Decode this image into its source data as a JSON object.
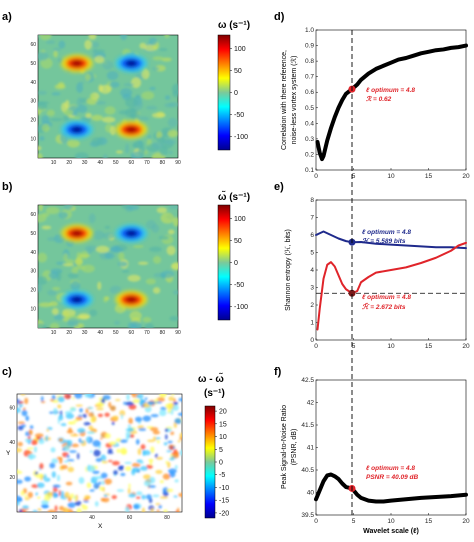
{
  "colors": {
    "red": "#e0242a",
    "blue": "#1f2a8c",
    "black": "#000000",
    "field": "#74c69c"
  },
  "panels": {
    "a": {
      "label": "a)",
      "cbar_title": "ω (s⁻¹)",
      "cbar_ticks": [
        "100",
        "50",
        "0",
        "-50",
        "-100"
      ],
      "xticks": [
        "10",
        "20",
        "30",
        "40",
        "50",
        "60",
        "70",
        "80",
        "90"
      ],
      "yticks": [
        "60",
        "50",
        "40",
        "30",
        "20",
        "10"
      ]
    },
    "b": {
      "label": "b)",
      "cbar_title": "ω̃ (s⁻¹)",
      "cbar_ticks": [
        "100",
        "50",
        "0",
        "-50",
        "-100"
      ],
      "xticks": [
        "10",
        "20",
        "30",
        "40",
        "50",
        "60",
        "70",
        "80",
        "90"
      ],
      "yticks": [
        "60",
        "50",
        "40",
        "30",
        "20",
        "10"
      ]
    },
    "c": {
      "label": "c)",
      "cbar_title": "ω - ω̃",
      "cbar_unit": "(s⁻¹)",
      "cbar_ticks": [
        "20",
        "15",
        "10",
        "5",
        "0",
        "-5",
        "-10",
        "-15",
        "-20"
      ],
      "xticks": [
        "20",
        "40",
        "60",
        "80"
      ],
      "yticks": [
        "60",
        "40",
        "20"
      ],
      "xlabel": "X",
      "ylabel": "Y"
    },
    "d": {
      "label": "d)",
      "ylabel1": "Correlation with there reference,",
      "ylabel2": "noise-less vortex system (ℛ)",
      "ann1": "ℓ optimum = 4.8",
      "ann2": "ℛ = 0.62"
    },
    "e": {
      "label": "e)",
      "ylabel": "Shannon entropy (ℋ, bits)",
      "ann_b1": "ℓ optimum = 4.8",
      "ann_b2": "ℋ = 5.589 bits",
      "ann_r1": "ℓ optimum = 4.8",
      "ann_r2": "ℋ̃ = 2.672 bits"
    },
    "f": {
      "label": "f)",
      "ylabel1": "Peak Signal-to-Noise Ratio",
      "ylabel2": "(PSNR, dB)",
      "xlabel": "Wavelet scale (ℓ)",
      "ann1": "ℓ optimum = 4.8",
      "ann2": "PSNR = 40.09 dB"
    }
  },
  "chart_data": [
    {
      "type": "heatmap",
      "panel": "a",
      "xlim": [
        0,
        90
      ],
      "ylim": [
        0,
        65
      ],
      "clim": [
        -130,
        130
      ],
      "vortices": [
        {
          "x": 25,
          "y": 50,
          "sign": 1
        },
        {
          "x": 60,
          "y": 50,
          "sign": -1
        },
        {
          "x": 25,
          "y": 15,
          "sign": -1
        },
        {
          "x": 60,
          "y": 15,
          "sign": 1
        }
      ]
    },
    {
      "type": "heatmap",
      "panel": "b",
      "xlim": [
        0,
        90
      ],
      "ylim": [
        0,
        65
      ],
      "clim": [
        -130,
        130
      ],
      "vortices": [
        {
          "x": 25,
          "y": 50,
          "sign": 1
        },
        {
          "x": 60,
          "y": 50,
          "sign": -1
        },
        {
          "x": 25,
          "y": 15,
          "sign": -1
        },
        {
          "x": 60,
          "y": 15,
          "sign": 1
        }
      ]
    },
    {
      "type": "heatmap",
      "panel": "c",
      "xlim": [
        0,
        88
      ],
      "ylim": [
        0,
        68
      ],
      "clim": [
        -20,
        20
      ]
    },
    {
      "type": "line",
      "panel": "d",
      "xlim": [
        0,
        20
      ],
      "ylim": [
        0.1,
        1.0
      ],
      "xticks": [
        0,
        5,
        10,
        15,
        20
      ],
      "yticks": [
        0.1,
        0.2,
        0.3,
        0.4,
        0.5,
        0.6,
        0.7,
        0.8,
        0.9,
        1.0
      ],
      "x": [
        0.2,
        0.5,
        0.8,
        1.0,
        1.5,
        2,
        2.5,
        3,
        3.5,
        4,
        4.8,
        5.5,
        6,
        7,
        8,
        9,
        10,
        11,
        12,
        13,
        14,
        15,
        16,
        17,
        18,
        19,
        20
      ],
      "y": [
        0.28,
        0.21,
        0.17,
        0.19,
        0.29,
        0.37,
        0.44,
        0.5,
        0.55,
        0.59,
        0.62,
        0.65,
        0.68,
        0.72,
        0.75,
        0.77,
        0.79,
        0.81,
        0.82,
        0.835,
        0.85,
        0.86,
        0.87,
        0.875,
        0.885,
        0.89,
        0.9
      ],
      "optimum": {
        "x": 4.8,
        "y": 0.62
      }
    },
    {
      "type": "line",
      "panel": "e",
      "xlim": [
        0,
        20
      ],
      "ylim": [
        0,
        8
      ],
      "xticks": [
        0,
        5,
        10,
        15,
        20
      ],
      "yticks": [
        0,
        1,
        2,
        3,
        4,
        5,
        6,
        7,
        8
      ],
      "series": [
        {
          "x": [
            0,
            1,
            2,
            3,
            4,
            4.8,
            6,
            8,
            10,
            12,
            14,
            16,
            18,
            20
          ],
          "y": [
            6.0,
            6.2,
            6.0,
            5.8,
            5.65,
            5.589,
            5.6,
            5.5,
            5.45,
            5.4,
            5.35,
            5.3,
            5.3,
            5.25
          ],
          "color": "#1f2a8c"
        },
        {
          "x": [
            0.2,
            0.5,
            1,
            1.5,
            2,
            2.5,
            3,
            3.5,
            4,
            4.8,
            5.5,
            6,
            7,
            8,
            10,
            12,
            14,
            16,
            18,
            19,
            20
          ],
          "y": [
            0.6,
            1.8,
            3.5,
            4.3,
            4.45,
            4.2,
            3.7,
            3.2,
            2.9,
            2.672,
            2.8,
            3.3,
            3.6,
            3.85,
            4.0,
            4.15,
            4.4,
            4.7,
            5.1,
            5.4,
            5.55
          ],
          "color": "#e0242a"
        }
      ],
      "hline": 2.672,
      "optimum_blue": {
        "x": 4.8,
        "y": 5.589
      },
      "optimum_red": {
        "x": 4.8,
        "y": 2.672
      }
    },
    {
      "type": "line",
      "panel": "f",
      "xlim": [
        0,
        20
      ],
      "ylim": [
        39.5,
        42.5
      ],
      "xticks": [
        0,
        5,
        10,
        15,
        20
      ],
      "yticks": [
        39.5,
        40,
        40.5,
        41,
        41.5,
        42,
        42.5
      ],
      "x": [
        0,
        0.5,
        1,
        1.5,
        2,
        2.5,
        3,
        3.5,
        4,
        4.8,
        5.5,
        6,
        7,
        8,
        9,
        10,
        12,
        14,
        16,
        18,
        20
      ],
      "y": [
        39.85,
        40.05,
        40.25,
        40.38,
        40.4,
        40.36,
        40.3,
        40.2,
        40.12,
        40.09,
        39.95,
        39.88,
        39.82,
        39.8,
        39.8,
        39.82,
        39.85,
        39.88,
        39.9,
        39.92,
        39.95
      ],
      "optimum": {
        "x": 4.8,
        "y": 40.09
      }
    }
  ]
}
